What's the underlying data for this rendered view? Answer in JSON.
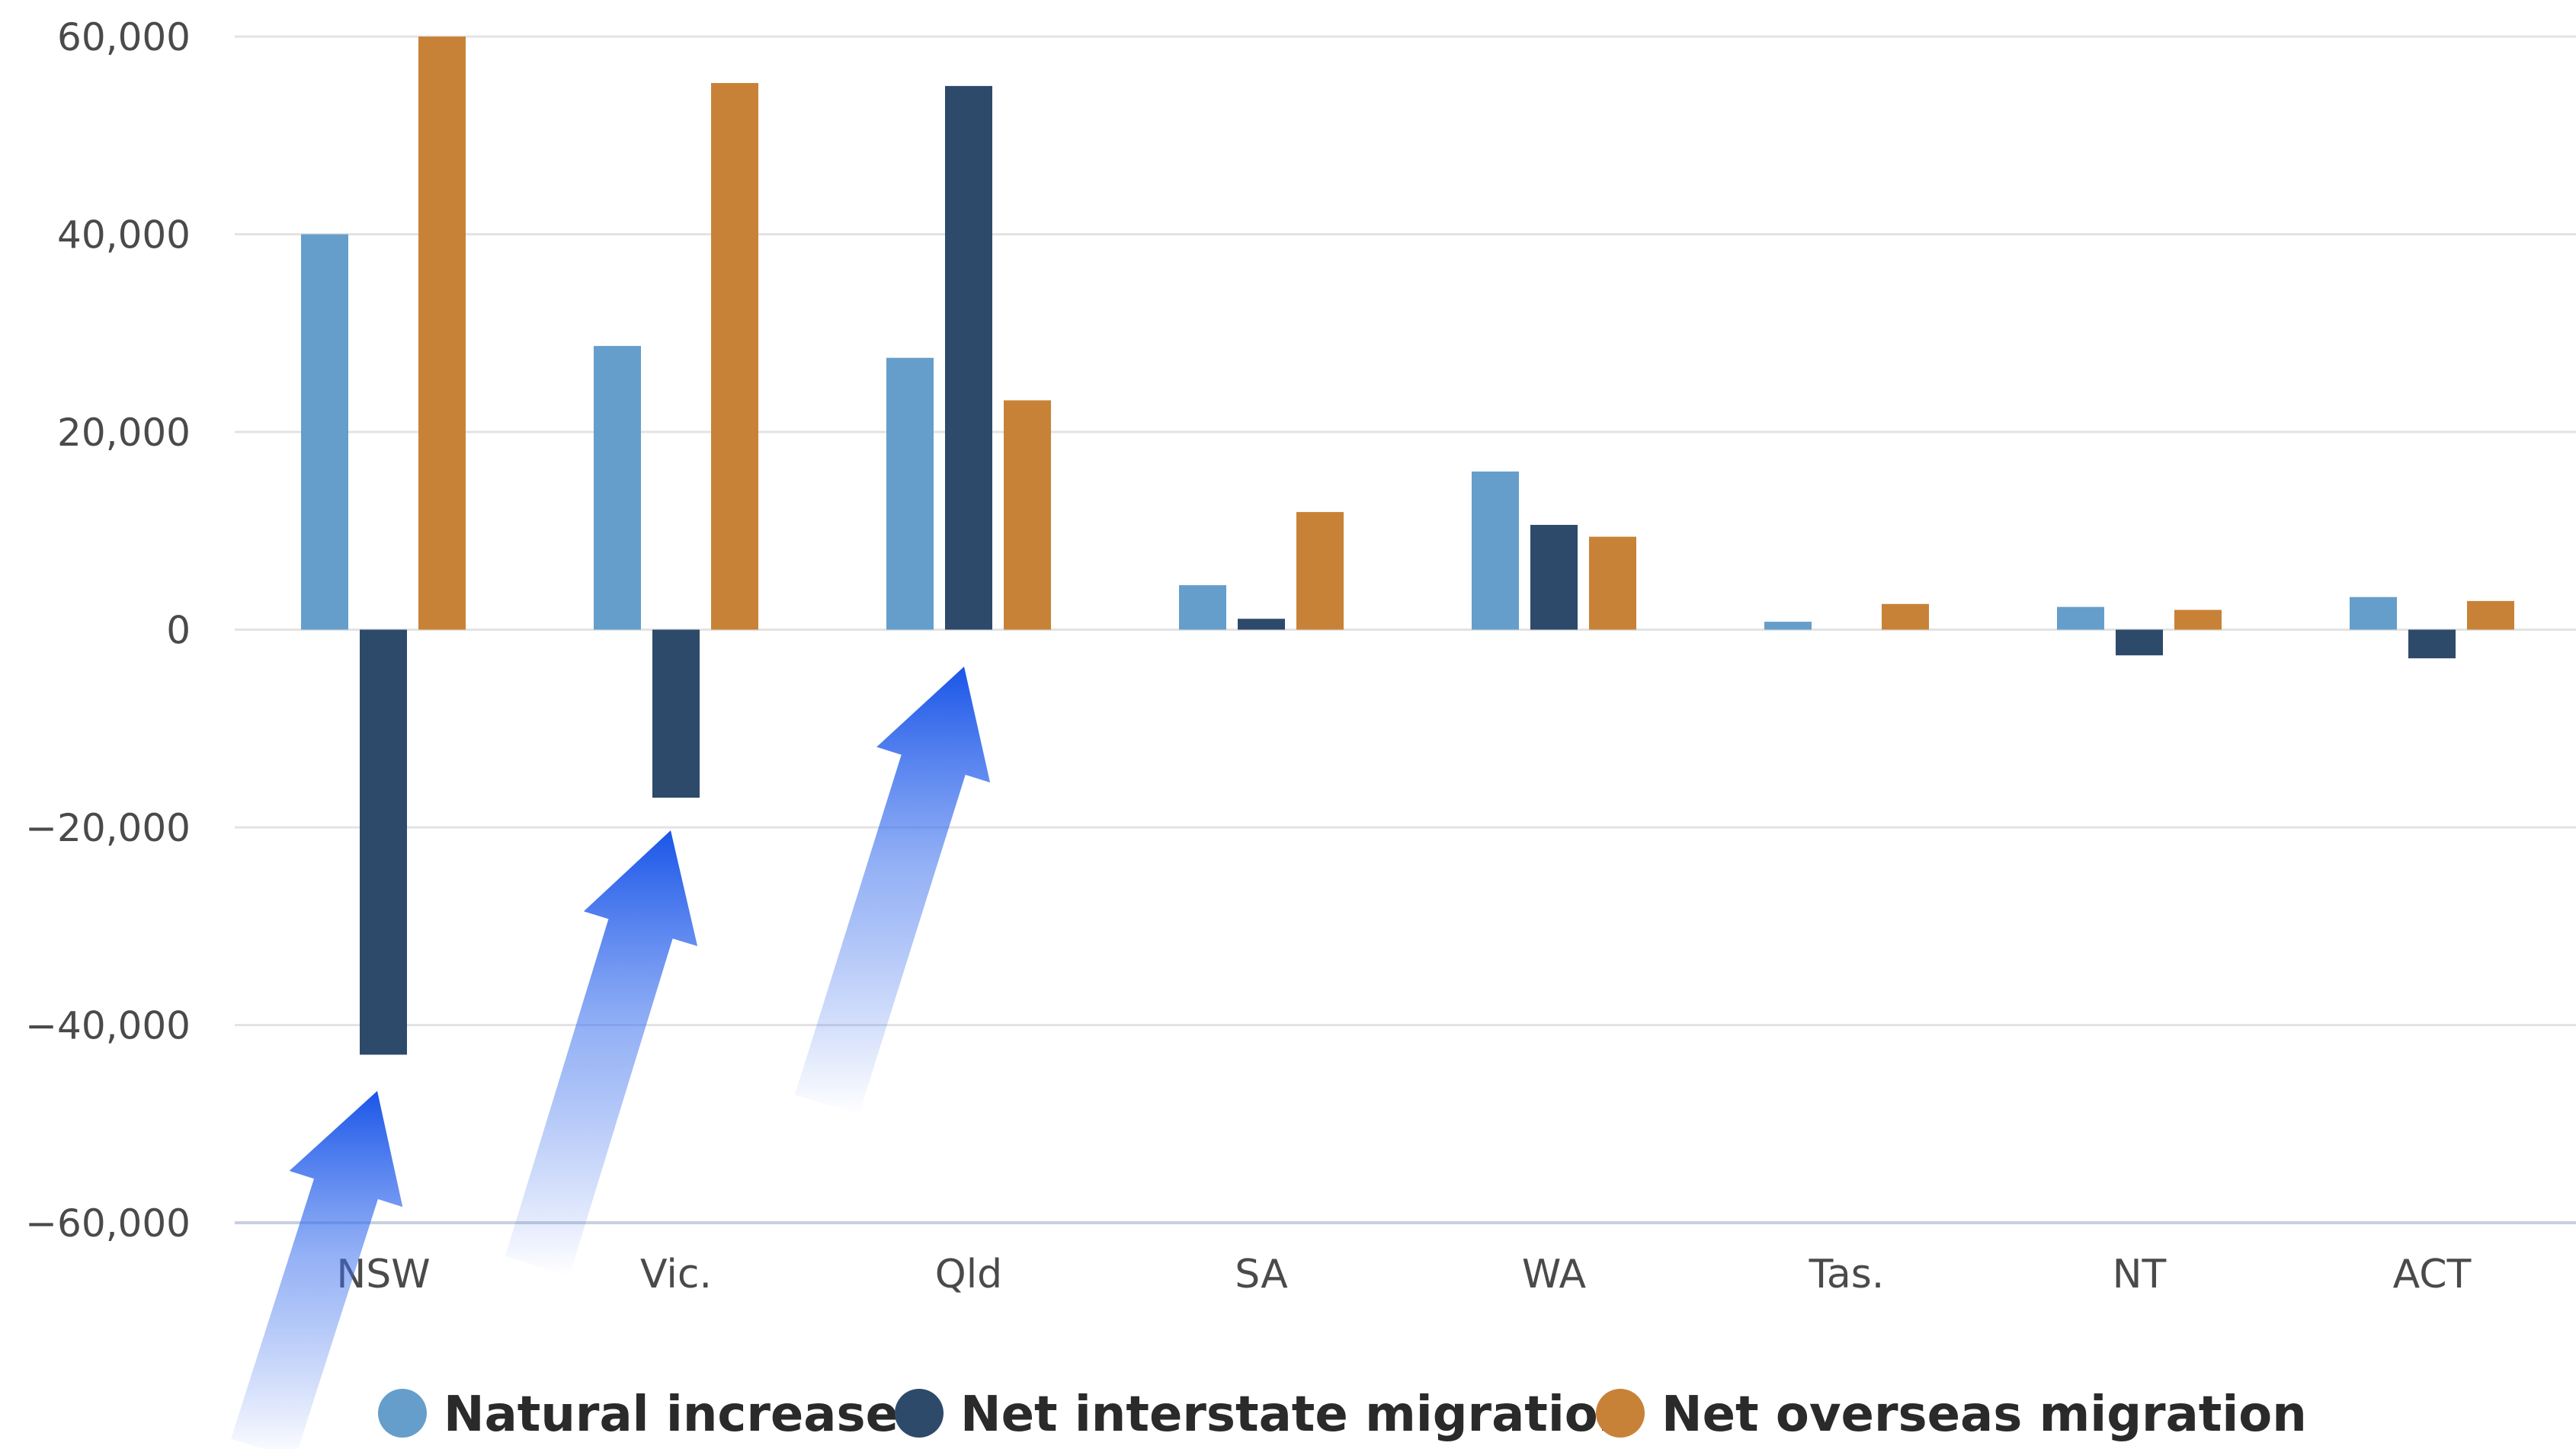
{
  "chart_data": {
    "type": "bar",
    "title": "",
    "xlabel": "",
    "ylabel": "",
    "categories": [
      "NSW",
      "Vic.",
      "Qld",
      "SA",
      "WA",
      "Tas.",
      "NT",
      "ACT"
    ],
    "ylim": [
      -60000,
      60000
    ],
    "yticks": [
      60000,
      40000,
      20000,
      0,
      -20000,
      -40000,
      -60000
    ],
    "ytick_labels": [
      "60,000",
      "40,000",
      "20,000",
      "0",
      "−20,000",
      "−40,000",
      "−60,000"
    ],
    "grid": true,
    "legend_position": "bottom",
    "series": [
      {
        "name": "Natural increase",
        "color": "#659ecb",
        "values": [
          40000,
          28700,
          27500,
          4500,
          16000,
          800,
          2300,
          3300
        ]
      },
      {
        "name": "Net interstate migration",
        "color": "#2d4a6b",
        "values": [
          -43000,
          -17000,
          55000,
          1100,
          10600,
          0,
          -2600,
          -2900
        ]
      },
      {
        "name": "Net overseas migration",
        "color": "#c88237",
        "values": [
          60000,
          55300,
          23200,
          11900,
          9400,
          2600,
          2000,
          2900
        ]
      }
    ],
    "annotations": [
      {
        "kind": "arrow",
        "color": "#1a55e8",
        "points_to": "NSW"
      },
      {
        "kind": "arrow",
        "color": "#1a55e8",
        "points_to": "Vic."
      },
      {
        "kind": "arrow",
        "color": "#1a55e8",
        "points_to": "Qld"
      }
    ]
  }
}
